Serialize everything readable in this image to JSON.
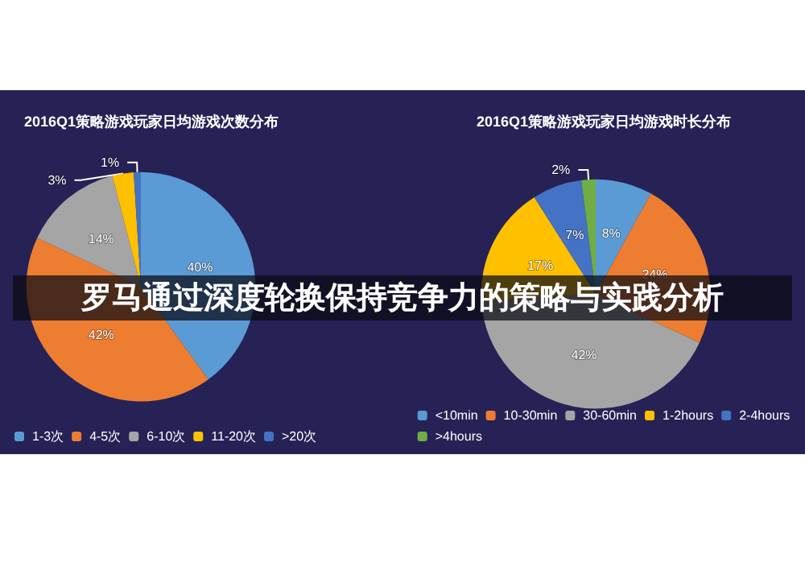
{
  "chart_data": [
    {
      "type": "pie",
      "title": "2016Q1策略游戏玩家日均游戏次数分布",
      "categories": [
        "1-3次",
        "4-5次",
        "6-10次",
        "11-20次",
        ">20次"
      ],
      "values": [
        40,
        42,
        14,
        3,
        1
      ],
      "colors": [
        "#5b9bd5",
        "#ed7d31",
        "#a5a5a5",
        "#ffc000",
        "#4472c4"
      ],
      "value_labels": [
        "40%",
        "42%",
        "14%",
        "3%",
        "1%"
      ],
      "legend": "bottom",
      "annotations": [
        "罗马通过深度轮换保持竞争力的策略与实践分析"
      ]
    },
    {
      "type": "pie",
      "title": "2016Q1策略游戏玩家日均游戏时长分布",
      "categories": [
        "<10min",
        "10-30min",
        "30-60min",
        "1-2hours",
        "2-4hours",
        ">4hours"
      ],
      "values": [
        8,
        24,
        42,
        17,
        7,
        2
      ],
      "colors": [
        "#5b9bd5",
        "#ed7d31",
        "#a5a5a5",
        "#ffc000",
        "#4472c4",
        "#70ad47"
      ],
      "value_labels": [
        "8%",
        "24%",
        "42%",
        "17%",
        "7%",
        "2%"
      ],
      "legend": "bottom"
    }
  ]
}
